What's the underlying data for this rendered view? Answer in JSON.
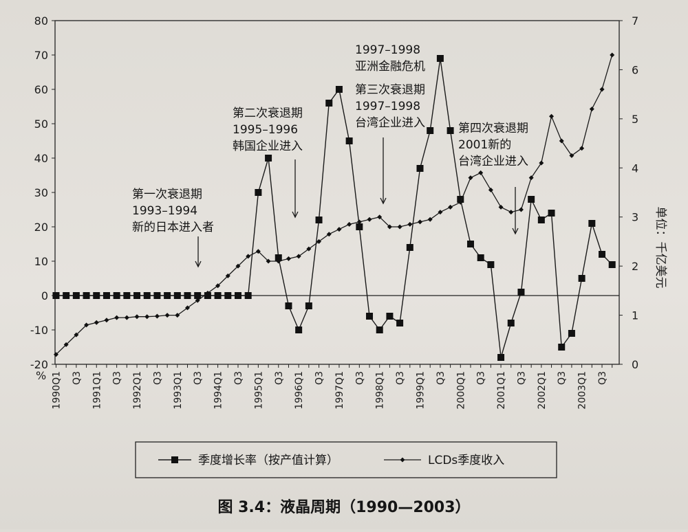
{
  "figure": {
    "caption": "图 3.4：液晶周期（1990—2003）"
  },
  "chart_data": {
    "type": "line",
    "title": "",
    "x": [
      "1990Q1",
      "1990Q2",
      "1990Q3",
      "1990Q4",
      "1991Q1",
      "1991Q2",
      "1991Q3",
      "1991Q4",
      "1992Q1",
      "1992Q2",
      "1992Q3",
      "1992Q4",
      "1993Q1",
      "1993Q2",
      "1993Q3",
      "1993Q4",
      "1994Q1",
      "1994Q2",
      "1994Q3",
      "1994Q4",
      "1995Q1",
      "1995Q2",
      "1995Q3",
      "1995Q4",
      "1996Q1",
      "1996Q2",
      "1996Q3",
      "1996Q4",
      "1997Q1",
      "1997Q2",
      "1997Q3",
      "1997Q4",
      "1998Q1",
      "1998Q2",
      "1998Q3",
      "1998Q4",
      "1999Q1",
      "1999Q2",
      "1999Q3",
      "1999Q4",
      "2000Q1",
      "2000Q2",
      "2000Q3",
      "2000Q4",
      "2001Q1",
      "2001Q2",
      "2001Q3",
      "2001Q4",
      "2002Q1",
      "2002Q2",
      "2002Q3",
      "2002Q4",
      "2003Q1",
      "2003Q2",
      "2003Q3",
      "2003Q4"
    ],
    "x_tick_labels": [
      "1990Q1",
      "Q3",
      "1991Q1",
      "Q3",
      "1992Q1",
      "Q3",
      "1993Q1",
      "Q3",
      "1994Q1",
      "Q3",
      "1995Q1",
      "Q3",
      "1996Q1",
      "Q3",
      "1997Q1",
      "Q3",
      "1998Q1",
      "Q3",
      "1999Q1",
      "Q3",
      "2000Q1",
      "Q3",
      "2001Q1",
      "Q3",
      "2002Q1",
      "Q3",
      "2003Q1",
      "Q3"
    ],
    "y_left": {
      "unit_label": "%",
      "ylim": [
        -20,
        80
      ],
      "ticks": [
        "80",
        "70",
        "60",
        "50",
        "40",
        "30",
        "20",
        "10",
        "0",
        "-10",
        "-20"
      ]
    },
    "y_right": {
      "unit_label": "单位：千亿美元",
      "ylim": [
        0,
        7
      ],
      "ticks": [
        "7",
        "6",
        "5",
        "4",
        "3",
        "2",
        "1",
        "0"
      ]
    },
    "grid": false,
    "legend_position": "bottom",
    "series": [
      {
        "name": "季度增长率（按产值计算）",
        "axis": "left",
        "marker": "square",
        "values": [
          0,
          0,
          0,
          0,
          0,
          0,
          0,
          0,
          0,
          0,
          0,
          0,
          0,
          0,
          0,
          0,
          0,
          0,
          0,
          0,
          30,
          40,
          11,
          -3,
          -10,
          -3,
          22,
          56,
          60,
          45,
          20,
          -6,
          -10,
          -6,
          -8,
          14,
          37,
          48,
          69,
          48,
          28,
          15,
          11,
          9,
          -18,
          -8,
          1,
          28,
          22,
          24,
          -15,
          -11,
          5,
          21,
          12,
          9
        ]
      },
      {
        "name": "LCDs季度收入",
        "axis": "right",
        "marker": "diamond",
        "values": [
          0.2,
          0.4,
          0.6,
          0.8,
          0.85,
          0.9,
          0.95,
          0.95,
          0.97,
          0.97,
          0.98,
          1.0,
          1.0,
          1.15,
          1.3,
          1.45,
          1.6,
          1.8,
          2.0,
          2.2,
          2.3,
          2.1,
          2.1,
          2.15,
          2.2,
          2.35,
          2.5,
          2.65,
          2.75,
          2.85,
          2.9,
          2.95,
          3.0,
          2.8,
          2.8,
          2.85,
          2.9,
          2.95,
          3.1,
          3.2,
          3.3,
          3.8,
          3.9,
          3.55,
          3.2,
          3.1,
          3.15,
          3.8,
          4.1,
          5.05,
          4.55,
          4.25,
          4.4,
          5.2,
          5.6,
          6.3
        ]
      }
    ],
    "annotations": [
      {
        "lines": [
          "第一次衰退期",
          "1993–1994",
          "新的日本进入者"
        ],
        "x": "1994Q1"
      },
      {
        "lines": [
          "第二次衰退期",
          "1995–1996",
          "韩国企业进入"
        ],
        "x": "1996Q1"
      },
      {
        "lines": [
          "1997–1998",
          "亚洲金融危机"
        ],
        "x": "1999Q3"
      },
      {
        "lines": [
          "第三次衰退期",
          "1997–1998",
          "台湾企业进入"
        ],
        "x": "1998Q1"
      },
      {
        "lines": [
          "第四次衰退期",
          "2001新的",
          "台湾企业进入"
        ],
        "x": "2001Q2"
      }
    ]
  }
}
